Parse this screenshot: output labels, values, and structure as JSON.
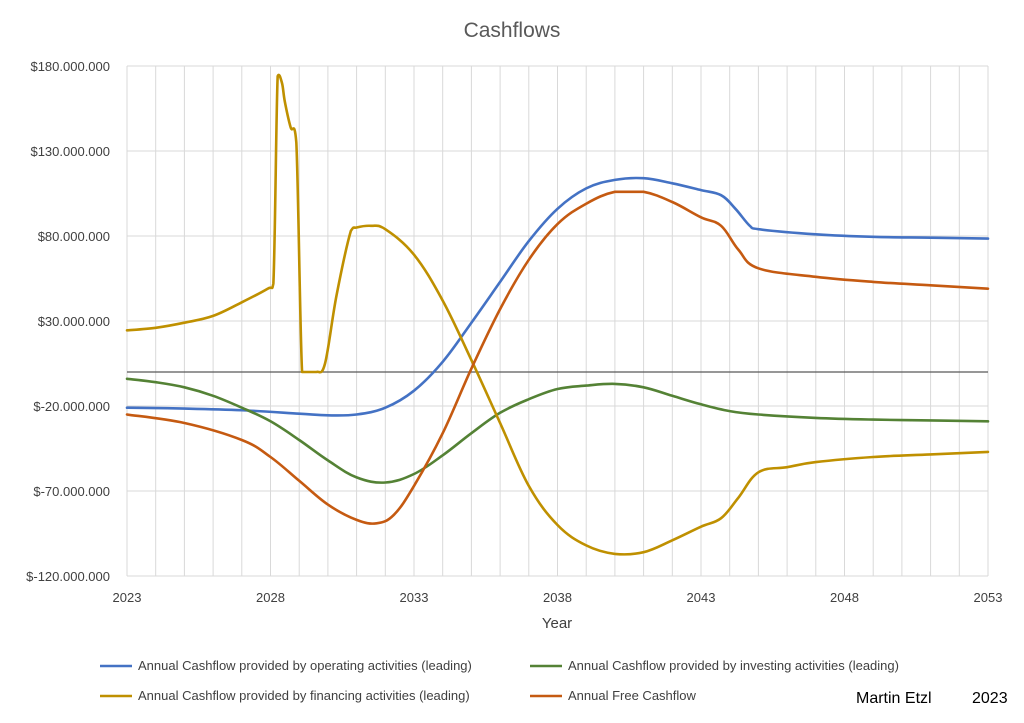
{
  "chart_data": {
    "type": "line",
    "title": "Cashflows",
    "xlabel": "Year",
    "ylabel": "",
    "xlim": [
      2023,
      2053
    ],
    "ylim": [
      -120000000,
      180000000
    ],
    "x_ticks": [
      2023,
      2028,
      2033,
      2038,
      2043,
      2048,
      2053
    ],
    "x_tick_labels": [
      "2023",
      "2028",
      "2033",
      "2038",
      "2043",
      "2048",
      "2053"
    ],
    "y_ticks": [
      -120000000,
      -70000000,
      -20000000,
      30000000,
      80000000,
      130000000,
      180000000
    ],
    "y_tick_labels": [
      "$-120.000.000",
      "$-70.000.000",
      "$-20.000.000",
      "$30.000.000",
      "$80.000.000",
      "$130.000.000",
      "$180.000.000"
    ],
    "grid": true,
    "legend_position": "bottom",
    "series": [
      {
        "name": "Annual Cashflow provided by operating activities (leading)",
        "color": "#4472c4",
        "x": [
          2023,
          2025,
          2027,
          2029,
          2030,
          2031,
          2032,
          2033,
          2034,
          2035,
          2036,
          2037,
          2038,
          2039,
          2040,
          2041,
          2042,
          2043,
          2043.7,
          2044.2,
          2044.7,
          2045,
          2047,
          2049,
          2051,
          2053
        ],
        "y": [
          -21000000,
          -21500000,
          -22500000,
          -24500000,
          -25500000,
          -25000000,
          -21000000,
          -11000000,
          6000000,
          29000000,
          53000000,
          77000000,
          96000000,
          108000000,
          113000000,
          114000000,
          111000000,
          107000000,
          104000000,
          96000000,
          86000000,
          84000000,
          81000000,
          79500000,
          79000000,
          78500000
        ]
      },
      {
        "name": "Annual Cashflow provided by investing activities (leading)",
        "color": "#548235",
        "x": [
          2023,
          2024,
          2025,
          2026,
          2027,
          2028,
          2029,
          2030,
          2031,
          2032,
          2033,
          2034,
          2035,
          2036,
          2037,
          2038,
          2039,
          2040,
          2041,
          2042,
          2043,
          2044,
          2045,
          2047,
          2049,
          2051,
          2053
        ],
        "y": [
          -4000000,
          -6000000,
          -9000000,
          -14000000,
          -21000000,
          -29000000,
          -40000000,
          -52000000,
          -62000000,
          -65000000,
          -60000000,
          -49000000,
          -36000000,
          -24000000,
          -16000000,
          -10000000,
          -8000000,
          -7000000,
          -9000000,
          -14000000,
          -19000000,
          -23000000,
          -25000000,
          -27000000,
          -28000000,
          -28500000,
          -29000000
        ]
      },
      {
        "name": "Annual Cashflow provided by financing activities (leading)",
        "color": "#bf9000",
        "x": [
          2023,
          2024,
          2025,
          2026,
          2027,
          2027.9,
          2028.1,
          2028.25,
          2028.4,
          2028.5,
          2028.7,
          2028.9,
          2029.1,
          2029.3,
          2029.6,
          2029.9,
          2030.3,
          2030.8,
          2031.0,
          2031.5,
          2032,
          2033,
          2034,
          2035,
          2036,
          2037,
          2038,
          2039,
          2040,
          2041,
          2042,
          2043,
          2043.7,
          2044.3,
          2045,
          2046,
          2047,
          2049,
          2051,
          2053
        ],
        "y": [
          24500000,
          26000000,
          29000000,
          33000000,
          41000000,
          49000000,
          52000000,
          174000000,
          170000000,
          159000000,
          144000000,
          135000000,
          0,
          0,
          0,
          5000000,
          45000000,
          83000000,
          85000000,
          86000000,
          84000000,
          69000000,
          42000000,
          7000000,
          -30000000,
          -67000000,
          -90000000,
          -102000000,
          -107000000,
          -106000000,
          -99000000,
          -91000000,
          -86000000,
          -74000000,
          -59000000,
          -56000000,
          -53000000,
          -50000000,
          -48500000,
          -47000000
        ]
      },
      {
        "name": "Annual Free Cashflow",
        "color": "#c55a11",
        "x": [
          2023,
          2025,
          2027,
          2028,
          2029,
          2030,
          2031,
          2031.7,
          2032.3,
          2033,
          2034,
          2035,
          2036,
          2037,
          2038,
          2039,
          2040,
          2041,
          2042,
          2043,
          2043.7,
          2044.3,
          2045,
          2047,
          2049,
          2051,
          2053
        ],
        "y": [
          -25000000,
          -30000000,
          -40000000,
          -50000000,
          -64000000,
          -78000000,
          -87000000,
          -89000000,
          -84000000,
          -67000000,
          -36000000,
          2000000,
          37000000,
          66000000,
          87000000,
          99000000,
          106000000,
          106000000,
          100000000,
          91000000,
          86000000,
          72000000,
          61000000,
          56000000,
          53000000,
          51000000,
          49000000
        ]
      }
    ]
  },
  "credit": {
    "author": "Martin Etzl",
    "year": "2023"
  }
}
